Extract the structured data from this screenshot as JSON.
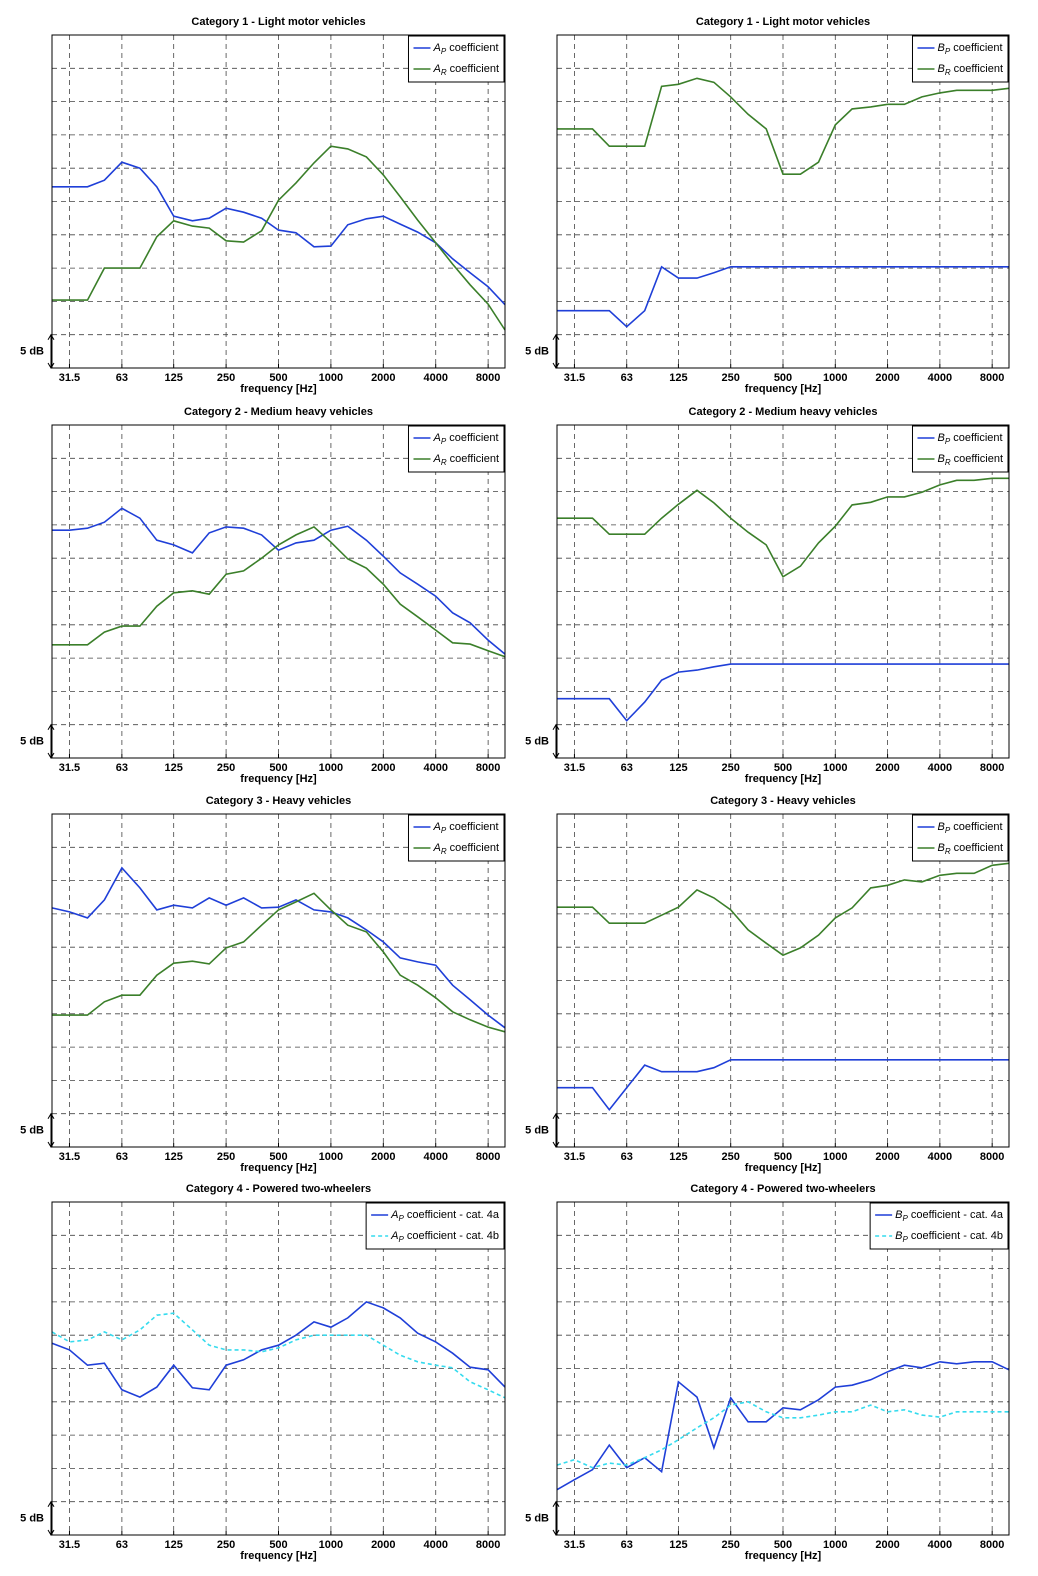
{
  "chart_data": [
    {
      "type": "line",
      "title": "Category 1 - Light motor vehicles",
      "xlabel": "frequency [Hz]",
      "log_x": true,
      "grid": true,
      "legend": "upper right",
      "x": [
        25,
        31.5,
        40,
        50,
        63,
        80,
        100,
        125,
        160,
        200,
        250,
        315,
        400,
        500,
        630,
        800,
        1000,
        1250,
        1600,
        2000,
        2500,
        3150,
        4000,
        5000,
        6300,
        8000,
        10000
      ],
      "xlim": [
        25,
        10000
      ],
      "xticks": [
        31.5,
        63,
        125,
        250,
        500,
        1000,
        2000,
        4000,
        8000
      ],
      "ylim": [
        0,
        50
      ],
      "yticks": [
        5,
        10,
        15,
        20,
        25,
        30,
        35,
        40,
        45
      ],
      "scale_bar": {
        "value": 5,
        "label": "5 dB"
      },
      "series": [
        {
          "name": "AP coefficient",
          "color": "#1f3fd8",
          "values": [
            27.2,
            27.2,
            27.2,
            28.2,
            30.9,
            30.0,
            27.2,
            22.8,
            22.1,
            22.5,
            24.0,
            23.4,
            22.5,
            20.7,
            20.3,
            18.2,
            18.3,
            21.5,
            22.4,
            22.8,
            21.6,
            20.4,
            18.8,
            16.4,
            14.3,
            12.2,
            9.5
          ]
        },
        {
          "name": "AR coefficient",
          "color": "#3b7f2a",
          "values": [
            10.2,
            10.2,
            10.2,
            15.0,
            15.0,
            15.0,
            19.7,
            22.1,
            21.3,
            21.0,
            19.1,
            18.9,
            20.6,
            25.2,
            27.8,
            30.8,
            33.3,
            32.9,
            31.7,
            29.0,
            25.7,
            22.2,
            18.8,
            15.6,
            12.5,
            9.6,
            5.7
          ]
        }
      ]
    },
    {
      "type": "line",
      "title": "Category 1 - Light motor vehicles",
      "xlabel": "frequency [Hz]",
      "log_x": true,
      "grid": true,
      "legend": "upper right",
      "x": [
        25,
        31.5,
        40,
        50,
        63,
        80,
        100,
        125,
        160,
        200,
        250,
        315,
        400,
        500,
        630,
        800,
        1000,
        1250,
        1600,
        2000,
        2500,
        3150,
        4000,
        5000,
        6300,
        8000,
        10000
      ],
      "xlim": [
        25,
        10000
      ],
      "xticks": [
        31.5,
        63,
        125,
        250,
        500,
        1000,
        2000,
        4000,
        8000
      ],
      "ylim": [
        0,
        50
      ],
      "yticks": [
        5,
        10,
        15,
        20,
        25,
        30,
        35,
        40,
        45
      ],
      "scale_bar": {
        "value": 5,
        "label": "5 dB"
      },
      "series": [
        {
          "name": "BP coefficient",
          "color": "#1f3fd8",
          "values": [
            8.6,
            8.6,
            8.6,
            8.6,
            6.2,
            8.6,
            15.2,
            13.5,
            13.5,
            14.3,
            15.2,
            15.2,
            15.2,
            15.2,
            15.2,
            15.2,
            15.2,
            15.2,
            15.2,
            15.2,
            15.2,
            15.2,
            15.2,
            15.2,
            15.2,
            15.2,
            15.2
          ]
        },
        {
          "name": "BR coefficient",
          "color": "#3b7f2a",
          "values": [
            35.9,
            35.9,
            35.9,
            33.3,
            33.3,
            33.3,
            42.3,
            42.6,
            43.5,
            42.9,
            40.7,
            38.1,
            35.9,
            29.1,
            29.1,
            30.9,
            36.5,
            38.9,
            39.2,
            39.6,
            39.6,
            40.7,
            41.3,
            41.7,
            41.7,
            41.7,
            42.0
          ]
        }
      ]
    },
    {
      "type": "line",
      "title": "Category 2 - Medium heavy vehicles",
      "xlabel": "frequency [Hz]",
      "log_x": true,
      "grid": true,
      "legend": "upper right",
      "x": [
        25,
        31.5,
        40,
        50,
        63,
        80,
        100,
        125,
        160,
        200,
        250,
        315,
        400,
        500,
        630,
        800,
        1000,
        1250,
        1600,
        2000,
        2500,
        3150,
        4000,
        5000,
        6300,
        8000,
        10000
      ],
      "xlim": [
        25,
        10000
      ],
      "xticks": [
        31.5,
        63,
        125,
        250,
        500,
        1000,
        2000,
        4000,
        8000
      ],
      "ylim": [
        0,
        50
      ],
      "yticks": [
        5,
        10,
        15,
        20,
        25,
        30,
        35,
        40,
        45
      ],
      "scale_bar": {
        "value": 5,
        "label": "5 dB"
      },
      "series": [
        {
          "name": "AP coefficient",
          "color": "#1f3fd8",
          "values": [
            34.2,
            34.2,
            34.5,
            35.4,
            37.5,
            36.0,
            32.7,
            32.0,
            30.8,
            33.8,
            34.7,
            34.5,
            33.5,
            31.2,
            32.3,
            32.7,
            34.2,
            34.8,
            32.7,
            30.3,
            27.8,
            26.1,
            24.3,
            21.8,
            20.3,
            17.7,
            15.6
          ]
        },
        {
          "name": "AR coefficient",
          "color": "#3b7f2a",
          "values": [
            17.0,
            17.0,
            17.0,
            18.9,
            19.8,
            19.8,
            22.8,
            24.8,
            25.1,
            24.6,
            27.6,
            28.1,
            30.0,
            32.0,
            33.5,
            34.7,
            32.4,
            29.9,
            28.5,
            26.1,
            23.1,
            21.2,
            19.2,
            17.3,
            17.1,
            16.1,
            15.2
          ]
        }
      ]
    },
    {
      "type": "line",
      "title": "Category 2 - Medium heavy vehicles",
      "xlabel": "frequency [Hz]",
      "log_x": true,
      "grid": true,
      "legend": "upper right",
      "x": [
        25,
        31.5,
        40,
        50,
        63,
        80,
        100,
        125,
        160,
        200,
        250,
        315,
        400,
        500,
        630,
        800,
        1000,
        1250,
        1600,
        2000,
        2500,
        3150,
        4000,
        5000,
        6300,
        8000,
        10000
      ],
      "xlim": [
        25,
        10000
      ],
      "xticks": [
        31.5,
        63,
        125,
        250,
        500,
        1000,
        2000,
        4000,
        8000
      ],
      "ylim": [
        0,
        50
      ],
      "yticks": [
        5,
        10,
        15,
        20,
        25,
        30,
        35,
        40,
        45
      ],
      "scale_bar": {
        "value": 5,
        "label": "5 dB"
      },
      "series": [
        {
          "name": "BP coefficient",
          "color": "#1f3fd8",
          "values": [
            8.9,
            8.9,
            8.9,
            8.9,
            5.6,
            8.4,
            11.7,
            12.9,
            13.2,
            13.7,
            14.1,
            14.1,
            14.1,
            14.1,
            14.1,
            14.1,
            14.1,
            14.1,
            14.1,
            14.1,
            14.1,
            14.1,
            14.1,
            14.1,
            14.1,
            14.1,
            14.1
          ]
        },
        {
          "name": "BR coefficient",
          "color": "#3b7f2a",
          "values": [
            36.0,
            36.0,
            36.0,
            33.6,
            33.6,
            33.6,
            36.0,
            38.1,
            40.2,
            38.3,
            36.0,
            33.9,
            32.0,
            27.2,
            28.8,
            32.3,
            34.8,
            38.0,
            38.4,
            39.2,
            39.2,
            39.9,
            41.0,
            41.7,
            41.7,
            42.0,
            42.0
          ]
        }
      ]
    },
    {
      "type": "line",
      "title": "Category 3 - Heavy vehicles",
      "xlabel": "frequency [Hz]",
      "log_x": true,
      "grid": true,
      "legend": "upper right",
      "x": [
        25,
        31.5,
        40,
        50,
        63,
        80,
        100,
        125,
        160,
        200,
        250,
        315,
        400,
        500,
        630,
        800,
        1000,
        1250,
        1600,
        2000,
        2500,
        3150,
        4000,
        5000,
        6300,
        8000,
        10000
      ],
      "xlim": [
        25,
        10000
      ],
      "xticks": [
        31.5,
        63,
        125,
        250,
        500,
        1000,
        2000,
        4000,
        8000
      ],
      "ylim": [
        0,
        50
      ],
      "yticks": [
        5,
        10,
        15,
        20,
        25,
        30,
        35,
        40,
        45
      ],
      "scale_bar": {
        "value": 5,
        "label": "5 dB"
      },
      "series": [
        {
          "name": "AP coefficient",
          "color": "#1f3fd8",
          "values": [
            35.9,
            35.3,
            34.4,
            37.1,
            41.9,
            38.9,
            35.6,
            36.3,
            35.9,
            37.4,
            36.3,
            37.4,
            35.9,
            36.0,
            37.1,
            35.6,
            35.3,
            34.4,
            32.6,
            30.8,
            28.4,
            27.8,
            27.3,
            24.3,
            22.1,
            19.8,
            17.9
          ]
        },
        {
          "name": "AR coefficient",
          "color": "#3b7f2a",
          "values": [
            19.8,
            19.8,
            19.8,
            21.8,
            22.8,
            22.8,
            25.8,
            27.6,
            27.9,
            27.5,
            29.9,
            30.8,
            33.3,
            35.6,
            36.8,
            38.1,
            35.6,
            33.3,
            32.3,
            29.3,
            25.8,
            24.3,
            22.4,
            20.3,
            19.1,
            18.0,
            17.3
          ]
        }
      ]
    },
    {
      "type": "line",
      "title": "Category 3 - Heavy vehicles",
      "xlabel": "frequency [Hz]",
      "log_x": true,
      "grid": true,
      "legend": "upper right",
      "x": [
        25,
        31.5,
        40,
        50,
        63,
        80,
        100,
        125,
        160,
        200,
        250,
        315,
        400,
        500,
        630,
        800,
        1000,
        1250,
        1600,
        2000,
        2500,
        3150,
        4000,
        5000,
        6300,
        8000,
        10000
      ],
      "xlim": [
        25,
        10000
      ],
      "xticks": [
        31.5,
        63,
        125,
        250,
        500,
        1000,
        2000,
        4000,
        8000
      ],
      "ylim": [
        0,
        50
      ],
      "yticks": [
        5,
        10,
        15,
        20,
        25,
        30,
        35,
        40,
        45
      ],
      "scale_bar": {
        "value": 5,
        "label": "5 dB"
      },
      "series": [
        {
          "name": "BP coefficient",
          "color": "#1f3fd8",
          "values": [
            8.9,
            8.9,
            8.9,
            5.6,
            8.9,
            12.3,
            11.3,
            11.3,
            11.3,
            11.9,
            13.1,
            13.1,
            13.1,
            13.1,
            13.1,
            13.1,
            13.1,
            13.1,
            13.1,
            13.1,
            13.1,
            13.1,
            13.1,
            13.1,
            13.1,
            13.1,
            13.1
          ]
        },
        {
          "name": "BR coefficient",
          "color": "#3b7f2a",
          "values": [
            36.0,
            36.0,
            36.0,
            33.6,
            33.6,
            33.6,
            34.8,
            36.0,
            38.6,
            37.4,
            35.6,
            32.6,
            30.6,
            28.8,
            29.9,
            31.8,
            34.4,
            35.9,
            38.9,
            39.3,
            40.1,
            39.8,
            40.8,
            41.1,
            41.1,
            42.3,
            42.6
          ]
        }
      ]
    },
    {
      "type": "line",
      "title": "Category 4 - Powered two-wheelers",
      "xlabel": "frequency [Hz]",
      "log_x": true,
      "grid": true,
      "legend": "upper right",
      "x": [
        25,
        31.5,
        40,
        50,
        63,
        80,
        100,
        125,
        160,
        200,
        250,
        315,
        400,
        500,
        630,
        800,
        1000,
        1250,
        1600,
        2000,
        2500,
        3150,
        4000,
        5000,
        6300,
        8000,
        10000
      ],
      "xlim": [
        25,
        10000
      ],
      "xticks": [
        31.5,
        63,
        125,
        250,
        500,
        1000,
        2000,
        4000,
        8000
      ],
      "ylim": [
        0,
        50
      ],
      "yticks": [
        5,
        10,
        15,
        20,
        25,
        30,
        35,
        40,
        45
      ],
      "scale_bar": {
        "value": 5,
        "label": "5 dB"
      },
      "series": [
        {
          "name": "AP coefficient - cat. 4a",
          "color": "#1f3fd8",
          "style": "solid",
          "values": [
            28.8,
            27.8,
            25.5,
            25.8,
            21.8,
            20.7,
            22.2,
            25.5,
            22.1,
            21.8,
            25.5,
            26.3,
            27.8,
            28.5,
            30.0,
            32.0,
            31.2,
            32.6,
            35.0,
            34.1,
            32.6,
            30.3,
            29.0,
            27.3,
            25.2,
            24.8,
            22.2
          ]
        },
        {
          "name": "AP coefficient - cat. 4b",
          "color": "#35dbee",
          "style": "dashed",
          "values": [
            30.5,
            29.0,
            29.3,
            30.5,
            29.3,
            30.8,
            33.0,
            33.3,
            30.8,
            28.5,
            27.8,
            27.8,
            27.5,
            28.1,
            29.3,
            30.0,
            30.0,
            30.0,
            30.0,
            28.5,
            27.0,
            26.0,
            25.5,
            25.1,
            23.0,
            21.8,
            20.6
          ]
        }
      ]
    },
    {
      "type": "line",
      "title": "Category 4 - Powered two-wheelers",
      "xlabel": "frequency [Hz]",
      "log_x": true,
      "grid": true,
      "legend": "upper right",
      "x": [
        25,
        31.5,
        40,
        50,
        63,
        80,
        100,
        125,
        160,
        200,
        250,
        315,
        400,
        500,
        630,
        800,
        1000,
        1250,
        1600,
        2000,
        2500,
        3150,
        4000,
        5000,
        6300,
        8000,
        10000
      ],
      "xlim": [
        25,
        10000
      ],
      "xticks": [
        31.5,
        63,
        125,
        250,
        500,
        1000,
        2000,
        4000,
        8000
      ],
      "ylim": [
        0,
        50
      ],
      "yticks": [
        5,
        10,
        15,
        20,
        25,
        30,
        35,
        40,
        45
      ],
      "scale_bar": {
        "value": 5,
        "label": "5 dB"
      },
      "series": [
        {
          "name": "BP coefficient - cat. 4a",
          "color": "#1f3fd8",
          "style": "solid",
          "values": [
            6.8,
            8.3,
            9.8,
            13.5,
            10.1,
            11.6,
            9.5,
            23.0,
            20.7,
            13.1,
            20.6,
            17.0,
            17.0,
            19.1,
            18.8,
            20.3,
            22.2,
            22.5,
            23.3,
            24.5,
            25.5,
            25.1,
            26.0,
            25.7,
            26.0,
            26.0,
            24.8
          ]
        },
        {
          "name": "BP coefficient - cat. 4b",
          "color": "#35dbee",
          "style": "dashed",
          "values": [
            10.5,
            11.3,
            10.1,
            10.8,
            10.5,
            11.6,
            12.8,
            14.3,
            16.1,
            17.6,
            19.5,
            20.0,
            18.5,
            17.6,
            17.6,
            18.0,
            18.5,
            18.5,
            19.5,
            18.5,
            18.8,
            18.0,
            17.7,
            18.5,
            18.5,
            18.5,
            18.5
          ]
        }
      ]
    }
  ]
}
